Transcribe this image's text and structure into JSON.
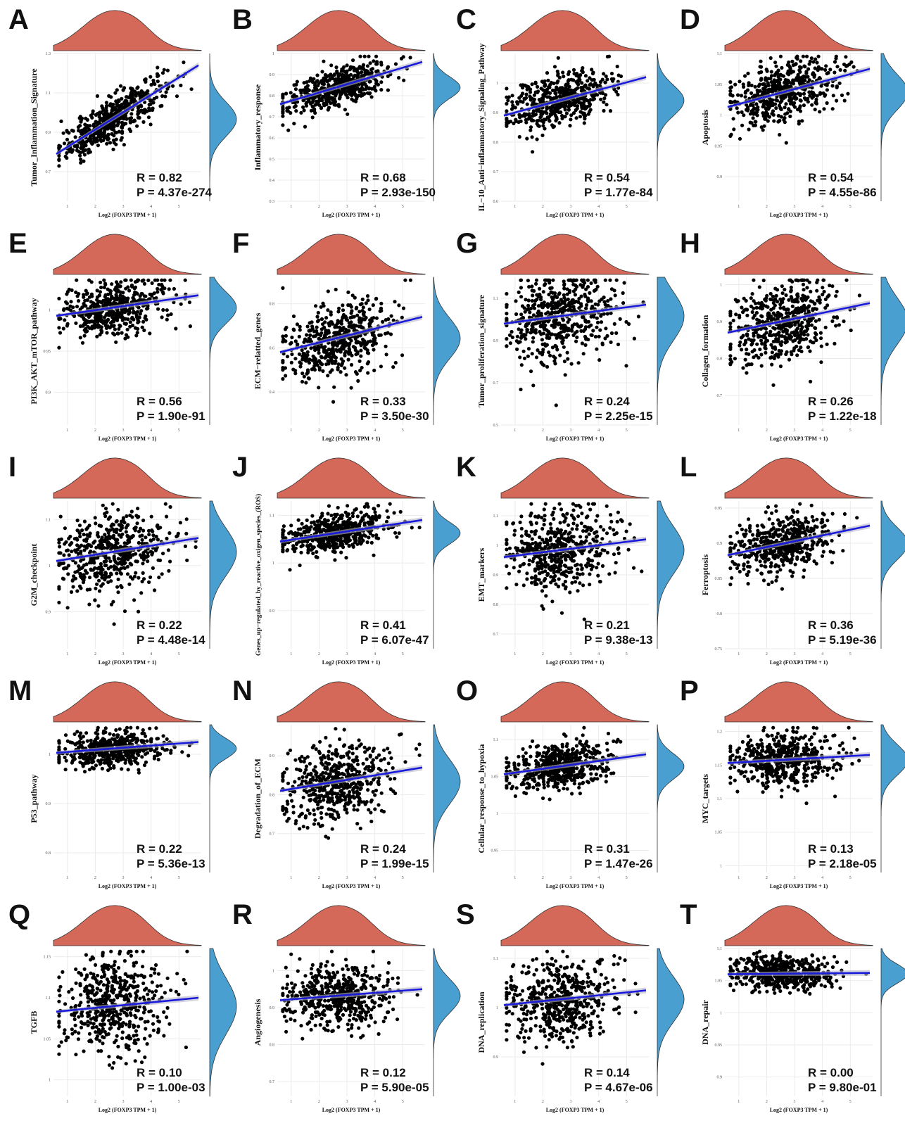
{
  "figure": {
    "x_label": "Log2 (FOXP3 TPM + 1)",
    "colors": {
      "point": "#000000",
      "fit_line": "#1a1adb",
      "top_density": "#d4695a",
      "side_density": "#4a9fd1",
      "grid": "#ebebeb"
    }
  },
  "chart_data": [
    {
      "type": "scatter",
      "panel": "A",
      "ylabel": "Tumor_Inflammation_Signature",
      "xlabel": "Log2 (FOXP3 TPM + 1)",
      "x_ticks": [
        1,
        2,
        3,
        4,
        5
      ],
      "xlim": [
        0.5,
        5.8
      ],
      "y_ticks": [
        0.7,
        0.9,
        1.1,
        1.3
      ],
      "ylim": [
        0.55,
        1.3
      ],
      "fit": {
        "x0": 0.6,
        "y0": 0.79,
        "x1": 5.7,
        "y1": 1.24
      },
      "spread": 0.055,
      "r_text": "R = 0.82",
      "p_text": "P = 4.37e-274",
      "grid": true
    },
    {
      "type": "scatter",
      "panel": "B",
      "ylabel": "Inflammatory_response",
      "xlabel": "Log2 (FOXP3 TPM + 1)",
      "x_ticks": [
        1,
        2,
        3,
        4,
        5
      ],
      "xlim": [
        0.5,
        5.8
      ],
      "y_ticks": [
        0.3,
        0.4,
        0.5,
        0.6,
        0.7,
        0.8,
        0.9,
        1.0
      ],
      "ylim": [
        0.3,
        1.0
      ],
      "fit": {
        "x0": 0.6,
        "y0": 0.76,
        "x1": 5.7,
        "y1": 0.96
      },
      "spread": 0.045,
      "r_text": "R = 0.68",
      "p_text": "P = 2.93e-150",
      "grid": true
    },
    {
      "type": "scatter",
      "panel": "C",
      "ylabel": "IL−10_Anti−inflammatory_Signaling_Pathway",
      "xlabel": "Log2 (FOXP3 TPM + 1)",
      "x_ticks": [
        1,
        2,
        3,
        4,
        5
      ],
      "xlim": [
        0.5,
        5.8
      ],
      "y_ticks": [
        0.6,
        0.7,
        0.8,
        0.9,
        1.0
      ],
      "ylim": [
        0.6,
        1.1
      ],
      "fit": {
        "x0": 0.6,
        "y0": 0.89,
        "x1": 5.7,
        "y1": 1.02
      },
      "spread": 0.045,
      "r_text": "R = 0.54",
      "p_text": "P = 1.77e-84",
      "grid": true
    },
    {
      "type": "scatter",
      "panel": "D",
      "ylabel": "Apoptosis",
      "xlabel": "Log2 (FOXP3 TPM + 1)",
      "x_ticks": [
        1,
        2,
        3,
        4,
        5
      ],
      "xlim": [
        0.5,
        5.8
      ],
      "y_ticks": [
        0.9,
        0.95,
        1.0,
        1.05,
        1.1
      ],
      "ylim": [
        0.86,
        1.1
      ],
      "fit": {
        "x0": 0.6,
        "y0": 1.013,
        "x1": 5.7,
        "y1": 1.075
      },
      "spread": 0.025,
      "r_text": "R = 0.54",
      "p_text": "P = 4.55e-86",
      "grid": true
    },
    {
      "type": "scatter",
      "panel": "E",
      "ylabel": "PI3K_AKT_mTOR_pathway",
      "xlabel": "Log2 (FOXP3 TPM + 1)",
      "x_ticks": [
        1,
        2,
        3,
        4,
        5
      ],
      "xlim": [
        0.5,
        5.8
      ],
      "y_ticks": [
        0.9,
        0.95,
        1.0
      ],
      "ylim": [
        0.86,
        1.04
      ],
      "fit": {
        "x0": 0.6,
        "y0": 0.993,
        "x1": 5.7,
        "y1": 1.018
      },
      "spread": 0.017,
      "r_text": "R = 0.56",
      "p_text": "P = 1.90e-91",
      "grid": true
    },
    {
      "type": "scatter",
      "panel": "F",
      "ylabel": "ECM−relatted_genes",
      "xlabel": "Log2 (FOXP3 TPM + 1)",
      "x_ticks": [
        1,
        2,
        3,
        4,
        5
      ],
      "xlim": [
        0.5,
        5.8
      ],
      "y_ticks": [
        0.4,
        0.6,
        0.8
      ],
      "ylim": [
        0.25,
        0.92
      ],
      "fit": {
        "x0": 0.6,
        "y0": 0.58,
        "x1": 5.7,
        "y1": 0.74
      },
      "spread": 0.08,
      "r_text": "R = 0.33",
      "p_text": "P = 3.50e-30",
      "grid": true
    },
    {
      "type": "scatter",
      "panel": "G",
      "ylabel": "Tumor_proliferation_signature",
      "xlabel": "Log2 (FOXP3 TPM + 1)",
      "x_ticks": [
        1,
        2,
        3,
        4,
        5
      ],
      "xlim": [
        0.5,
        5.8
      ],
      "y_ticks": [
        0.5,
        0.7,
        0.9,
        1.1
      ],
      "ylim": [
        0.5,
        1.2
      ],
      "fit": {
        "x0": 0.6,
        "y0": 0.98,
        "x1": 5.7,
        "y1": 1.07
      },
      "spread": 0.1,
      "r_text": "R = 0.24",
      "p_text": "P = 2.25e-15",
      "grid": true
    },
    {
      "type": "scatter",
      "panel": "H",
      "ylabel": "Collagen_formation",
      "xlabel": "Log2 (FOXP3 TPM + 1)",
      "x_ticks": [
        1,
        2,
        3,
        4,
        5
      ],
      "xlim": [
        0.5,
        5.8
      ],
      "y_ticks": [
        0.7,
        0.8,
        0.9,
        1.0
      ],
      "ylim": [
        0.62,
        1.02
      ],
      "fit": {
        "x0": 0.6,
        "y0": 0.87,
        "x1": 5.7,
        "y1": 0.95
      },
      "spread": 0.055,
      "r_text": "R = 0.26",
      "p_text": "P = 1.22e-18",
      "grid": true
    },
    {
      "type": "scatter",
      "panel": "I",
      "ylabel": "G2M_checkpoint",
      "xlabel": "Log2 (FOXP3 TPM + 1)",
      "x_ticks": [
        1,
        2,
        3,
        4,
        5
      ],
      "xlim": [
        0.5,
        5.8
      ],
      "y_ticks": [
        0.9,
        1.0,
        1.1
      ],
      "ylim": [
        0.82,
        1.14
      ],
      "fit": {
        "x0": 0.6,
        "y0": 1.01,
        "x1": 5.7,
        "y1": 1.06
      },
      "spread": 0.045,
      "r_text": "R = 0.22",
      "p_text": "P = 4.48e-14",
      "grid": true
    },
    {
      "type": "scatter",
      "panel": "J",
      "ylabel": "Genes_up−regulated_by_reactive_oxigen_species_(ROS)",
      "xlabel": "Log2 (FOXP3 TPM + 1)",
      "x_ticks": [
        1,
        2,
        3,
        4,
        5
      ],
      "xlim": [
        0.5,
        5.8
      ],
      "y_ticks": [
        0.9,
        1.0,
        1.1
      ],
      "ylim": [
        0.82,
        1.13
      ],
      "fit": {
        "x0": 0.6,
        "y0": 1.045,
        "x1": 5.7,
        "y1": 1.09
      },
      "spread": 0.02,
      "r_text": "R = 0.41",
      "p_text": "P = 6.07e-47",
      "grid": true
    },
    {
      "type": "scatter",
      "panel": "K",
      "ylabel": "EMT_markers",
      "xlabel": "Log2 (FOXP3 TPM + 1)",
      "x_ticks": [
        1,
        2,
        3,
        4,
        5
      ],
      "xlim": [
        0.5,
        5.8
      ],
      "y_ticks": [
        0.7,
        0.8,
        0.9,
        1.0,
        1.1
      ],
      "ylim": [
        0.65,
        1.15
      ],
      "fit": {
        "x0": 0.6,
        "y0": 0.96,
        "x1": 5.7,
        "y1": 1.02
      },
      "spread": 0.07,
      "r_text": "R = 0.21",
      "p_text": "P = 9.38e-13",
      "grid": true
    },
    {
      "type": "scatter",
      "panel": "L",
      "ylabel": "Ferroptosis",
      "xlabel": "Log2 (FOXP3 TPM + 1)",
      "x_ticks": [
        1,
        2,
        3,
        4,
        5
      ],
      "xlim": [
        0.5,
        5.8
      ],
      "y_ticks": [
        0.75,
        0.8,
        0.85,
        0.9,
        0.95
      ],
      "ylim": [
        0.75,
        0.96
      ],
      "fit": {
        "x0": 0.6,
        "y0": 0.883,
        "x1": 5.7,
        "y1": 0.925
      },
      "spread": 0.02,
      "r_text": "R = 0.36",
      "p_text": "P = 5.19e-36",
      "grid": true
    },
    {
      "type": "scatter",
      "panel": "M",
      "ylabel": "P53_pathway",
      "xlabel": "Log2 (FOXP3 TPM + 1)",
      "x_ticks": [
        1,
        2,
        3,
        4,
        5
      ],
      "xlim": [
        0.5,
        5.8
      ],
      "y_ticks": [
        0.8,
        0.9,
        1.0
      ],
      "ylim": [
        0.76,
        1.06
      ],
      "fit": {
        "x0": 0.6,
        "y0": 1.003,
        "x1": 5.7,
        "y1": 1.025
      },
      "spread": 0.018,
      "r_text": "R = 0.22",
      "p_text": "P = 5.36e-13",
      "grid": true
    },
    {
      "type": "scatter",
      "panel": "N",
      "ylabel": "Degradation_of_ECM",
      "xlabel": "Log2 (FOXP3 TPM + 1)",
      "x_ticks": [
        1,
        2,
        3,
        4,
        5
      ],
      "xlim": [
        0.5,
        5.8
      ],
      "y_ticks": [
        0.7,
        0.8,
        0.9
      ],
      "ylim": [
        0.6,
        0.98
      ],
      "fit": {
        "x0": 0.6,
        "y0": 0.81,
        "x1": 5.7,
        "y1": 0.87
      },
      "spread": 0.05,
      "r_text": "R = 0.24",
      "p_text": "P = 1.99e-15",
      "grid": true
    },
    {
      "type": "scatter",
      "panel": "O",
      "ylabel": "Cellular_response_to_hypoxia",
      "xlabel": "Log2 (FOXP3 TPM + 1)",
      "x_ticks": [
        1,
        2,
        3,
        4,
        5
      ],
      "xlim": [
        0.5,
        5.8
      ],
      "y_ticks": [
        0.95,
        1.0,
        1.05,
        1.1
      ],
      "ylim": [
        0.92,
        1.12
      ],
      "fit": {
        "x0": 0.6,
        "y0": 1.053,
        "x1": 5.7,
        "y1": 1.08
      },
      "spread": 0.015,
      "r_text": "R = 0.31",
      "p_text": "P = 1.47e-26",
      "grid": true
    },
    {
      "type": "scatter",
      "panel": "P",
      "ylabel": "MYC_targets",
      "xlabel": "Log2 (FOXP3 TPM + 1)",
      "x_ticks": [
        1,
        2,
        3,
        4,
        5
      ],
      "xlim": [
        0.5,
        5.8
      ],
      "y_ticks": [
        1.0,
        1.05,
        1.1,
        1.15,
        1.2
      ],
      "ylim": [
        0.99,
        1.21
      ],
      "fit": {
        "x0": 0.6,
        "y0": 1.153,
        "x1": 5.7,
        "y1": 1.165
      },
      "spread": 0.02,
      "r_text": "R = 0.13",
      "p_text": "P = 2.18e-05",
      "grid": true
    },
    {
      "type": "scatter",
      "panel": "Q",
      "ylabel": "TGFB",
      "xlabel": "Log2 (FOXP3 TPM + 1)",
      "x_ticks": [
        1,
        2,
        3,
        4,
        5
      ],
      "xlim": [
        0.5,
        5.8
      ],
      "y_ticks": [
        1.0,
        1.05,
        1.1,
        1.15
      ],
      "ylim": [
        0.98,
        1.16
      ],
      "fit": {
        "x0": 0.6,
        "y0": 1.083,
        "x1": 5.7,
        "y1": 1.1
      },
      "spread": 0.03,
      "r_text": "R = 0.10",
      "p_text": "P = 1.00e-03",
      "grid": true
    },
    {
      "type": "scatter",
      "panel": "R",
      "ylabel": "Angiogenesis",
      "xlabel": "Log2 (FOXP3 TPM + 1)",
      "x_ticks": [
        1,
        2,
        3,
        4,
        5
      ],
      "xlim": [
        0.5,
        5.8
      ],
      "y_ticks": [
        0.7,
        0.8,
        0.9,
        1.0
      ],
      "ylim": [
        0.66,
        1.06
      ],
      "fit": {
        "x0": 0.6,
        "y0": 0.92,
        "x1": 5.7,
        "y1": 0.95
      },
      "spread": 0.04,
      "r_text": "R = 0.12",
      "p_text": "P = 5.90e-05",
      "grid": true
    },
    {
      "type": "scatter",
      "panel": "S",
      "ylabel": "DNA_replication",
      "xlabel": "Log2 (FOXP3 TPM + 1)",
      "x_ticks": [
        1,
        2,
        3,
        4,
        5
      ],
      "xlim": [
        0.5,
        5.8
      ],
      "y_ticks": [
        0.9,
        1.0,
        1.1
      ],
      "ylim": [
        0.82,
        1.12
      ],
      "fit": {
        "x0": 0.6,
        "y0": 1.005,
        "x1": 5.7,
        "y1": 1.035
      },
      "spread": 0.04,
      "r_text": "R = 0.14",
      "p_text": "P = 4.67e-06",
      "grid": true
    },
    {
      "type": "scatter",
      "panel": "T",
      "ylabel": "DNA_repair",
      "xlabel": "Log2 (FOXP3 TPM + 1)",
      "x_ticks": [
        1,
        2,
        3,
        4,
        5
      ],
      "xlim": [
        0.5,
        5.8
      ],
      "y_ticks": [
        0.9,
        0.95,
        1.0,
        1.05,
        1.1
      ],
      "ylim": [
        0.87,
        1.1
      ],
      "fit": {
        "x0": 0.6,
        "y0": 1.06,
        "x1": 5.7,
        "y1": 1.062
      },
      "spread": 0.013,
      "r_text": "R = 0.00",
      "p_text": "P = 9.80e-01",
      "grid": true
    }
  ]
}
